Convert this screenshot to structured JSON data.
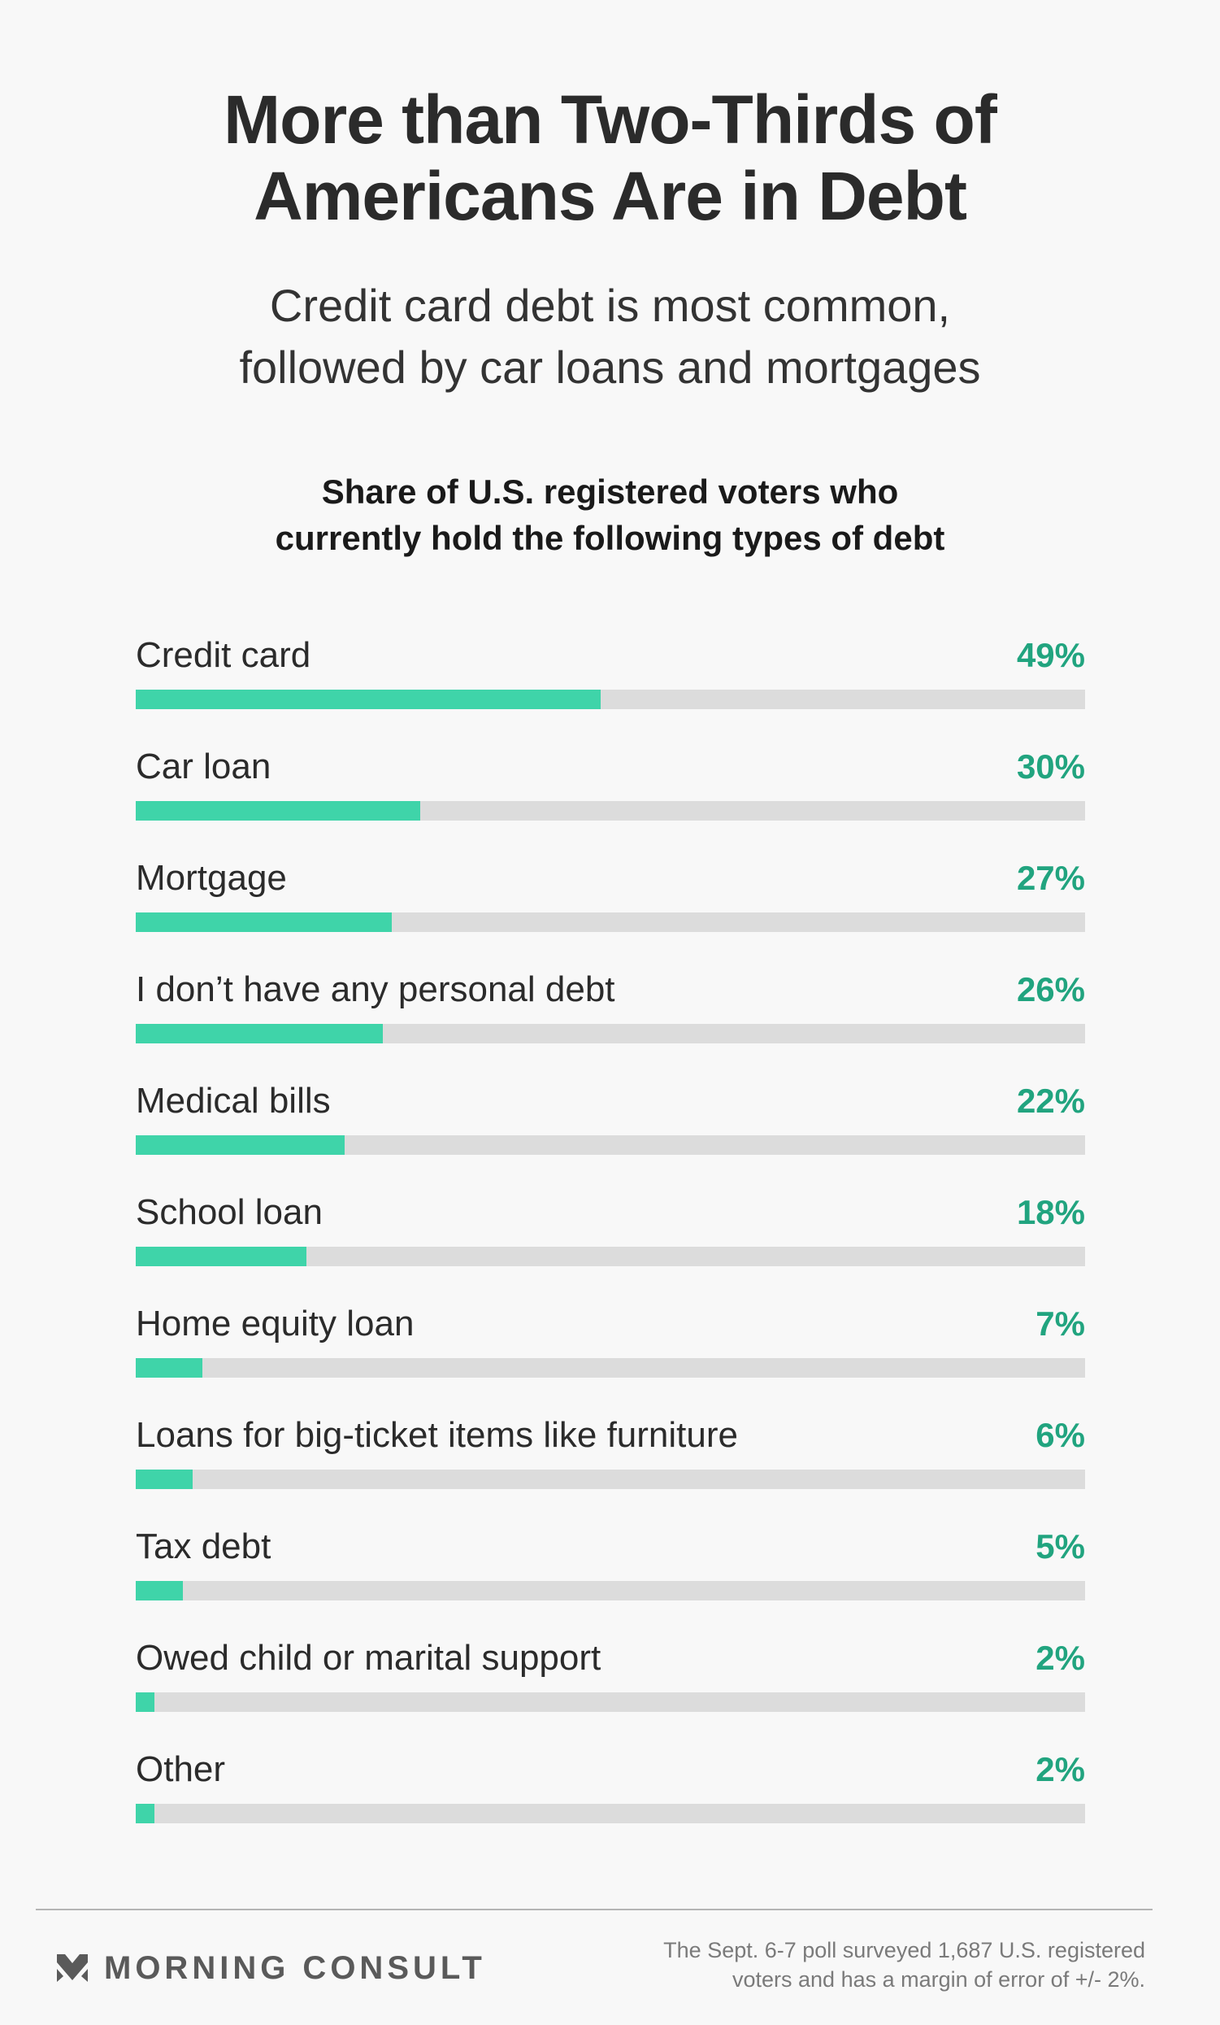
{
  "header": {
    "title_line1": "More than Two-Thirds of",
    "title_line2": "Americans Are in Debt",
    "subtitle_line1": "Credit card debt is most common,",
    "subtitle_line2": "followed by car loans and mortgages"
  },
  "chart_data": {
    "type": "bar",
    "orientation": "horizontal",
    "title_line1": "Share of U.S. registered voters who",
    "title_line2": "currently hold the following types of debt",
    "categories": [
      "Credit card",
      "Car loan",
      "Mortgage",
      "I don’t have any personal debt",
      "Medical bills",
      "School loan",
      "Home equity loan",
      "Loans for big-ticket items like furniture",
      "Tax debt",
      "Owed child or marital support",
      "Other"
    ],
    "values": [
      49,
      30,
      27,
      26,
      22,
      18,
      7,
      6,
      5,
      2,
      2
    ],
    "value_labels": [
      "49%",
      "30%",
      "27%",
      "26%",
      "22%",
      "18%",
      "7%",
      "6%",
      "5%",
      "2%",
      "2%"
    ],
    "xlim": [
      0,
      100
    ],
    "unit": "%",
    "grid": false,
    "colors": {
      "bar": "#3fd4a9",
      "track": "#dcdcdc",
      "value_text": "#21a47f"
    }
  },
  "footer": {
    "brand": "MORNING CONSULT",
    "logo_icon": "morning-consult-chevron-icon",
    "note_line1": "The Sept. 6-7 poll surveyed 1,687 U.S. registered",
    "note_line2": "voters and has a margin of error of +/- 2%."
  }
}
